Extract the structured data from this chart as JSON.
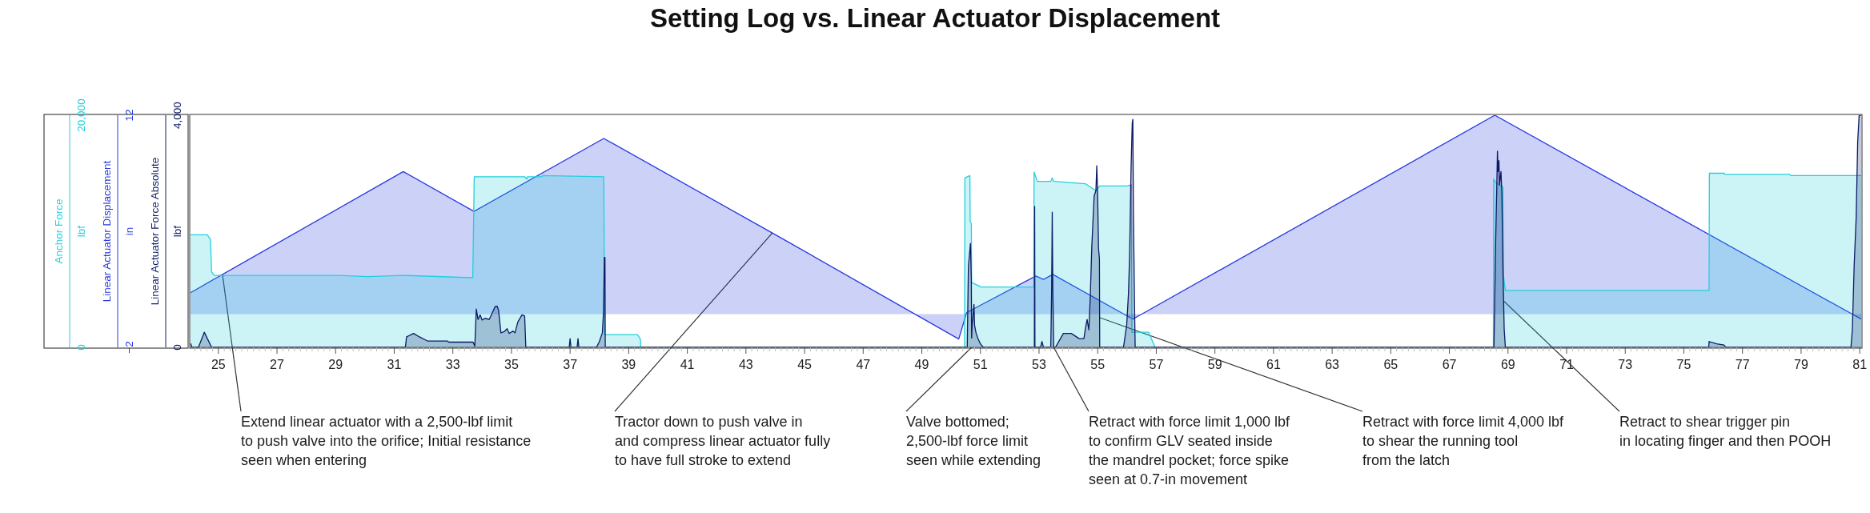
{
  "chart_data": {
    "type": "area",
    "title": "Setting Log vs. Linear Actuator Displacement",
    "ylabel": "Linear Actuator Displacement\nin",
    "y2label": "Anchor Force\nlbf",
    "y3label": "Linear Actuator Force Absolute\nlbf",
    "xlim": [
      24.05,
      81.05
    ],
    "xticks": [
      {
        "value": 24.2,
        "label": null
      },
      {
        "value": 24.4,
        "label": null
      },
      {
        "value": 24.6,
        "label": null
      },
      {
        "value": 24.8,
        "label": null
      },
      25,
      {
        "value": 25.2,
        "label": null
      },
      {
        "value": 25.4,
        "label": null
      },
      {
        "value": 25.6,
        "label": null
      },
      {
        "value": 25.8,
        "label": null
      },
      {
        "value": 26,
        "label": null
      },
      {
        "value": 26.2,
        "label": null
      },
      {
        "value": 26.4,
        "label": null
      },
      {
        "value": 26.6,
        "label": null
      },
      {
        "value": 26.8,
        "label": null
      },
      27,
      {
        "value": 27.2,
        "label": null
      },
      {
        "value": 27.4,
        "label": null
      },
      {
        "value": 27.6,
        "label": null
      },
      {
        "value": 27.8,
        "label": null
      },
      {
        "value": 28,
        "label": null
      },
      {
        "value": 28.2,
        "label": null
      },
      {
        "value": 28.4,
        "label": null
      },
      {
        "value": 28.6,
        "label": null
      },
      {
        "value": 28.8,
        "label": null
      },
      29,
      {
        "value": 29.2,
        "label": null
      },
      {
        "value": 29.4,
        "label": null
      },
      {
        "value": 29.6,
        "label": null
      },
      {
        "value": 29.8,
        "label": null
      },
      {
        "value": 30,
        "label": null
      },
      {
        "value": 30.2,
        "label": null
      },
      {
        "value": 30.4,
        "label": null
      },
      {
        "value": 30.6,
        "label": null
      },
      {
        "value": 30.8,
        "label": null
      },
      31,
      {
        "value": 31.2,
        "label": null
      },
      {
        "value": 31.4,
        "label": null
      },
      {
        "value": 31.6,
        "label": null
      },
      {
        "value": 31.8,
        "label": null
      },
      {
        "value": 32,
        "label": null
      },
      {
        "value": 32.2,
        "label": null
      },
      {
        "value": 32.4,
        "label": null
      },
      {
        "value": 32.6,
        "label": null
      },
      {
        "value": 32.8,
        "label": null
      },
      33,
      {
        "value": 33.2,
        "label": null
      },
      {
        "value": 33.4,
        "label": null
      },
      {
        "value": 33.6,
        "label": null
      },
      {
        "value": 33.8,
        "label": null
      },
      {
        "value": 34,
        "label": null
      },
      {
        "value": 34.2,
        "label": null
      },
      {
        "value": 34.4,
        "label": null
      },
      {
        "value": 34.6,
        "label": null
      },
      {
        "value": 34.8,
        "label": null
      },
      35,
      {
        "value": 35.2,
        "label": null
      },
      {
        "value": 35.4,
        "label": null
      },
      {
        "value": 35.6,
        "label": null
      },
      {
        "value": 35.8,
        "label": null
      },
      {
        "value": 36,
        "label": null
      },
      {
        "value": 36.2,
        "label": null
      },
      {
        "value": 36.4,
        "label": null
      },
      {
        "value": 36.6,
        "label": null
      },
      {
        "value": 36.8,
        "label": null
      },
      37,
      {
        "value": 37.2,
        "label": null
      },
      {
        "value": 37.4,
        "label": null
      },
      {
        "value": 37.6,
        "label": null
      },
      {
        "value": 37.8,
        "label": null
      },
      {
        "value": 38,
        "label": null
      },
      {
        "value": 38.2,
        "label": null
      },
      {
        "value": 38.4,
        "label": null
      },
      {
        "value": 38.6,
        "label": null
      },
      {
        "value": 38.8,
        "label": null
      },
      39,
      {
        "value": 39.2,
        "label": null
      },
      {
        "value": 39.4,
        "label": null
      },
      {
        "value": 39.6,
        "label": null
      },
      {
        "value": 39.8,
        "label": null
      },
      {
        "value": 40,
        "label": null
      },
      {
        "value": 40.2,
        "label": null
      },
      {
        "value": 40.4,
        "label": null
      },
      {
        "value": 40.6,
        "label": null
      },
      {
        "value": 40.8,
        "label": null
      },
      41,
      {
        "value": 41.2,
        "label": null
      },
      {
        "value": 41.4,
        "label": null
      },
      {
        "value": 41.6,
        "label": null
      },
      {
        "value": 41.8,
        "label": null
      },
      {
        "value": 42,
        "label": null
      },
      {
        "value": 42.2,
        "label": null
      },
      {
        "value": 42.4,
        "label": null
      },
      {
        "value": 42.6,
        "label": null
      },
      {
        "value": 42.8,
        "label": null
      },
      43,
      {
        "value": 43.2,
        "label": null
      },
      {
        "value": 43.4,
        "label": null
      },
      {
        "value": 43.6,
        "label": null
      },
      {
        "value": 43.8,
        "label": null
      },
      {
        "value": 44,
        "label": null
      },
      {
        "value": 44.2,
        "label": null
      },
      {
        "value": 44.4,
        "label": null
      },
      {
        "value": 44.6,
        "label": null
      },
      {
        "value": 44.8,
        "label": null
      },
      45,
      {
        "value": 45.2,
        "label": null
      },
      {
        "value": 45.4,
        "label": null
      },
      {
        "value": 45.6,
        "label": null
      },
      {
        "value": 45.8,
        "label": null
      },
      {
        "value": 46,
        "label": null
      },
      {
        "value": 46.2,
        "label": null
      },
      {
        "value": 46.4,
        "label": null
      },
      {
        "value": 46.6,
        "label": null
      },
      {
        "value": 46.8,
        "label": null
      },
      47,
      {
        "value": 47.2,
        "label": null
      },
      {
        "value": 47.4,
        "label": null
      },
      {
        "value": 47.6,
        "label": null
      },
      {
        "value": 47.8,
        "label": null
      },
      {
        "value": 48,
        "label": null
      },
      {
        "value": 48.2,
        "label": null
      },
      {
        "value": 48.4,
        "label": null
      },
      {
        "value": 48.6,
        "label": null
      },
      {
        "value": 48.8,
        "label": null
      },
      49,
      {
        "value": 49.2,
        "label": null
      },
      {
        "value": 49.4,
        "label": null
      },
      {
        "value": 49.6,
        "label": null
      },
      {
        "value": 49.8,
        "label": null
      },
      {
        "value": 50,
        "label": null
      },
      {
        "value": 50.2,
        "label": null
      },
      {
        "value": 50.4,
        "label": null
      },
      {
        "value": 50.6,
        "label": null
      },
      {
        "value": 50.8,
        "label": null
      },
      51,
      {
        "value": 51.2,
        "label": null
      },
      {
        "value": 51.4,
        "label": null
      },
      {
        "value": 51.6,
        "label": null
      },
      {
        "value": 51.8,
        "label": null
      },
      {
        "value": 52,
        "label": null
      },
      {
        "value": 52.2,
        "label": null
      },
      {
        "value": 52.4,
        "label": null
      },
      {
        "value": 52.6,
        "label": null
      },
      {
        "value": 52.8,
        "label": null
      },
      53,
      {
        "value": 53.2,
        "label": null
      },
      {
        "value": 53.4,
        "label": null
      },
      {
        "value": 53.6,
        "label": null
      },
      {
        "value": 53.8,
        "label": null
      },
      {
        "value": 54,
        "label": null
      },
      {
        "value": 54.2,
        "label": null
      },
      {
        "value": 54.4,
        "label": null
      },
      {
        "value": 54.6,
        "label": null
      },
      {
        "value": 54.8,
        "label": null
      },
      55,
      {
        "value": 55.2,
        "label": null
      },
      {
        "value": 55.4,
        "label": null
      },
      {
        "value": 55.6,
        "label": null
      },
      {
        "value": 55.8,
        "label": null
      },
      {
        "value": 56,
        "label": null
      },
      {
        "value": 56.2,
        "label": null
      },
      {
        "value": 56.4,
        "label": null
      },
      {
        "value": 56.6,
        "label": null
      },
      {
        "value": 56.8,
        "label": null
      },
      57,
      {
        "value": 57.2,
        "label": null
      },
      {
        "value": 57.4,
        "label": null
      },
      {
        "value": 57.6,
        "label": null
      },
      {
        "value": 57.8,
        "label": null
      },
      {
        "value": 58,
        "label": null
      },
      {
        "value": 58.2,
        "label": null
      },
      {
        "value": 58.4,
        "label": null
      },
      {
        "value": 58.6,
        "label": null
      },
      {
        "value": 58.8,
        "label": null
      },
      59,
      {
        "value": 59.2,
        "label": null
      },
      {
        "value": 59.4,
        "label": null
      },
      {
        "value": 59.6,
        "label": null
      },
      {
        "value": 59.8,
        "label": null
      },
      {
        "value": 60,
        "label": null
      },
      {
        "value": 60.2,
        "label": null
      },
      {
        "value": 60.4,
        "label": null
      },
      {
        "value": 60.6,
        "label": null
      },
      {
        "value": 60.8,
        "label": null
      },
      61,
      {
        "value": 61.2,
        "label": null
      },
      {
        "value": 61.4,
        "label": null
      },
      {
        "value": 61.6,
        "label": null
      },
      {
        "value": 61.8,
        "label": null
      },
      {
        "value": 62,
        "label": null
      },
      {
        "value": 62.2,
        "label": null
      },
      {
        "value": 62.4,
        "label": null
      },
      {
        "value": 62.6,
        "label": null
      },
      {
        "value": 62.8,
        "label": null
      },
      63,
      {
        "value": 63.2,
        "label": null
      },
      {
        "value": 63.4,
        "label": null
      },
      {
        "value": 63.6,
        "label": null
      },
      {
        "value": 63.8,
        "label": null
      },
      {
        "value": 64,
        "label": null
      },
      {
        "value": 64.2,
        "label": null
      },
      {
        "value": 64.4,
        "label": null
      },
      {
        "value": 64.6,
        "label": null
      },
      {
        "value": 64.8,
        "label": null
      },
      65,
      {
        "value": 65.2,
        "label": null
      },
      {
        "value": 65.4,
        "label": null
      },
      {
        "value": 65.6,
        "label": null
      },
      {
        "value": 65.8,
        "label": null
      },
      {
        "value": 66,
        "label": null
      },
      {
        "value": 66.2,
        "label": null
      },
      {
        "value": 66.4,
        "label": null
      },
      {
        "value": 66.6,
        "label": null
      },
      {
        "value": 66.8,
        "label": null
      },
      67,
      {
        "value": 67.2,
        "label": null
      },
      {
        "value": 67.4,
        "label": null
      },
      {
        "value": 67.6,
        "label": null
      },
      {
        "value": 67.8,
        "label": null
      },
      {
        "value": 68,
        "label": null
      },
      {
        "value": 68.2,
        "label": null
      },
      {
        "value": 68.4,
        "label": null
      },
      {
        "value": 68.6,
        "label": null
      },
      {
        "value": 68.8,
        "label": null
      },
      69,
      {
        "value": 69.2,
        "label": null
      },
      {
        "value": 69.4,
        "label": null
      },
      {
        "value": 69.6,
        "label": null
      },
      {
        "value": 69.8,
        "label": null
      },
      {
        "value": 70,
        "label": null
      },
      {
        "value": 70.2,
        "label": null
      },
      {
        "value": 70.4,
        "label": null
      },
      {
        "value": 70.6,
        "label": null
      },
      {
        "value": 70.8,
        "label": null
      },
      71,
      {
        "value": 71.2,
        "label": null
      },
      {
        "value": 71.4,
        "label": null
      },
      {
        "value": 71.6,
        "label": null
      },
      {
        "value": 71.8,
        "label": null
      },
      {
        "value": 72,
        "label": null
      },
      {
        "value": 72.2,
        "label": null
      },
      {
        "value": 72.4,
        "label": null
      },
      {
        "value": 72.6,
        "label": null
      },
      {
        "value": 72.8,
        "label": null
      },
      73,
      {
        "value": 73.2,
        "label": null
      },
      {
        "value": 73.4,
        "label": null
      },
      {
        "value": 73.6,
        "label": null
      },
      {
        "value": 73.8,
        "label": null
      },
      {
        "value": 74,
        "label": null
      },
      {
        "value": 74.2,
        "label": null
      },
      {
        "value": 74.4,
        "label": null
      },
      {
        "value": 74.6,
        "label": null
      },
      {
        "value": 74.8,
        "label": null
      },
      75,
      {
        "value": 75.2,
        "label": null
      },
      {
        "value": 75.4,
        "label": null
      },
      {
        "value": 75.6,
        "label": null
      },
      {
        "value": 75.8,
        "label": null
      },
      {
        "value": 76,
        "label": null
      },
      {
        "value": 76.2,
        "label": null
      },
      {
        "value": 76.4,
        "label": null
      },
      {
        "value": 76.6,
        "label": null
      },
      {
        "value": 76.8,
        "label": null
      },
      77,
      {
        "value": 77.2,
        "label": null
      },
      {
        "value": 77.4,
        "label": null
      },
      {
        "value": 77.6,
        "label": null
      },
      {
        "value": 77.8,
        "label": null
      },
      {
        "value": 78,
        "label": null
      },
      {
        "value": 78.2,
        "label": null
      },
      {
        "value": 78.4,
        "label": null
      },
      {
        "value": 78.6,
        "label": null
      },
      {
        "value": 78.8,
        "label": null
      },
      79,
      {
        "value": 79.2,
        "label": null
      },
      {
        "value": 79.4,
        "label": null
      },
      {
        "value": 79.6,
        "label": null
      },
      {
        "value": 79.8,
        "label": null
      },
      {
        "value": 80,
        "label": null
      },
      {
        "value": 80.2,
        "label": null
      },
      {
        "value": 80.4,
        "label": null
      },
      {
        "value": 80.6,
        "label": null
      },
      {
        "value": 80.8,
        "label": null
      },
      81
    ],
    "ylim": [
      -2,
      12
    ],
    "yticks": [
      {
        "value": -2,
        "label": "−2"
      },
      12
    ],
    "y2lim": [
      0,
      20000
    ],
    "y2ticks": [
      0,
      {
        "value": 20000,
        "label": "20,000"
      }
    ],
    "y3lim": [
      0,
      4000
    ],
    "y3ticks": [
      0,
      {
        "value": 4000,
        "label": "4,000"
      }
    ],
    "series": [
      {
        "color": "#2438e0",
        "axis": "y",
        "x": [
          24.05,
          31.31,
          33.72,
          38.15,
          43.9,
          50.26,
          50.53,
          52.89,
          53.15,
          53.47,
          56.2,
          68.55,
          81.05
        ],
        "values": [
          1.3,
          8.6,
          6.2,
          10.6,
          4.9,
          -1.5,
          0.1,
          2.3,
          2.1,
          2.4,
          -0.3,
          12,
          -0.3
        ]
      },
      {
        "color": "#22d0dc",
        "axis": "y2",
        "x": [
          24.05,
          24.62,
          24.73,
          24.77,
          24.86,
          29.07,
          30.09,
          31.31,
          33.68,
          33.73,
          35.46,
          35.52,
          35.55,
          36.03,
          36.07,
          38.15,
          38.18,
          39.3,
          39.4,
          39.41,
          50.46,
          50.47,
          50.64,
          50.65,
          50.69,
          50.7,
          51.02,
          52.82,
          52.83,
          52.94,
          53.4,
          53.45,
          53.5,
          54.58,
          54.94,
          55.07,
          55.99,
          56.15,
          56.17,
          56.74,
          56.96,
          68.5,
          68.51,
          68.58,
          68.83,
          68.85,
          68.91,
          75.86,
          75.87,
          76.38,
          76.39,
          78.61,
          78.65,
          81.05
        ],
        "values": [
          9700,
          9700,
          9300,
          6500,
          6200,
          6200,
          6100,
          6200,
          6000,
          14700,
          14700,
          14500,
          14700,
          14700,
          14800,
          14700,
          1100,
          1100,
          700,
          0,
          0,
          14600,
          14800,
          10800,
          10700,
          5600,
          5200,
          5200,
          15100,
          14300,
          14300,
          14600,
          14300,
          14100,
          13500,
          13900,
          13900,
          14000,
          1300,
          1300,
          0,
          0,
          14500,
          14200,
          13800,
          6100,
          4900,
          4900,
          15000,
          15000,
          14900,
          14900,
          14800,
          14800
        ]
      },
      {
        "color": "#0c1a66",
        "axis": "y3",
        "x": [
          24.05,
          24.1,
          24.32,
          24.52,
          24.77,
          31.38,
          31.42,
          31.66,
          31.86,
          32.13,
          32.81,
          32.86,
          33.69,
          33.75,
          33.8,
          33.86,
          33.93,
          34.0,
          34.1,
          34.24,
          34.37,
          34.44,
          34.51,
          34.56,
          34.64,
          34.75,
          34.85,
          34.92,
          35.05,
          35.12,
          35.22,
          35.36,
          35.45,
          35.49,
          36.97,
          37.0,
          37.03,
          37.24,
          37.27,
          37.3,
          37.9,
          38.0,
          38.1,
          38.14,
          38.17,
          38.19,
          38.2,
          50.55,
          50.59,
          50.66,
          50.69,
          50.7,
          50.72,
          50.75,
          50.78,
          50.8,
          50.85,
          50.91,
          51.0,
          51.1,
          52.84,
          52.85,
          52.86,
          53.05,
          53.1,
          53.15,
          53.4,
          53.43,
          53.45,
          53.47,
          53.5,
          53.56,
          53.83,
          54.1,
          54.37,
          54.53,
          54.58,
          54.64,
          54.7,
          54.75,
          54.8,
          54.88,
          54.94,
          54.97,
          55.0,
          55.03,
          55.06,
          55.07,
          55.88,
          55.99,
          56.05,
          56.09,
          56.14,
          56.18,
          56.2,
          56.22,
          56.26,
          56.28,
          68.52,
          68.58,
          68.61,
          68.64,
          68.66,
          68.69,
          68.71,
          68.76,
          68.79,
          68.83,
          68.87,
          68.91,
          75.85,
          75.86,
          76.12,
          76.37,
          76.43,
          80.7,
          80.75,
          80.81,
          80.88,
          80.93,
          80.98,
          81.05
        ],
        "values": [
          70,
          0,
          0,
          260,
          0,
          0,
          180,
          240,
          180,
          110,
          110,
          90,
          90,
          20,
          660,
          480,
          560,
          470,
          500,
          480,
          620,
          700,
          710,
          640,
          250,
          270,
          320,
          240,
          280,
          250,
          440,
          560,
          540,
          0,
          0,
          150,
          0,
          0,
          150,
          0,
          0,
          100,
          250,
          600,
          1550,
          1550,
          0,
          0,
          1400,
          1790,
          1140,
          160,
          400,
          560,
          740,
          380,
          250,
          160,
          60,
          0,
          0,
          2430,
          0,
          0,
          100,
          0,
          0,
          1000,
          2330,
          1000,
          0,
          0,
          240,
          240,
          150,
          150,
          320,
          480,
          300,
          900,
          1740,
          2610,
          2700,
          3130,
          2610,
          1700,
          1530,
          0,
          0,
          380,
          920,
          1580,
          3100,
          3870,
          3930,
          2300,
          650,
          0,
          0,
          1860,
          2580,
          3380,
          3030,
          3220,
          2800,
          3030,
          2670,
          1280,
          310,
          0,
          0,
          100,
          60,
          40,
          0,
          0,
          310,
          1410,
          2250,
          3540,
          4000,
          4000
        ]
      }
    ],
    "annotations": [
      {
        "text": "Extend linear actuator with a 2,500-lbf limit\nto push valve into the orifice; Initial resistance\nseen when entering",
        "x": 25.14,
        "y": 2.4
      },
      {
        "text": "Tractor down to push valve in\nand compress linear actuator fully\nto have full stroke to extend",
        "x": 43.9,
        "y": 4.9
      },
      {
        "text": "Valve bottomed;\n2,500-lbf force limit\nseen while extending",
        "x": 50.7,
        "y": -2
      },
      {
        "text": "Retract with force limit 1,000 lbf\nto confirm GLV seated inside\nthe mandrel pocket; force spike\nseen at 0.7-in movement",
        "x": 53.5,
        "y": -2
      },
      {
        "text": "Retract with force limit 4,000 lbf\nto shear the running tool\nfrom the latch",
        "x": 55.06,
        "y": -0.2
      },
      {
        "text": "Retract to shear trigger pin\nin locating finger and then POOH",
        "x": 68.85,
        "y": 0.8
      }
    ]
  }
}
